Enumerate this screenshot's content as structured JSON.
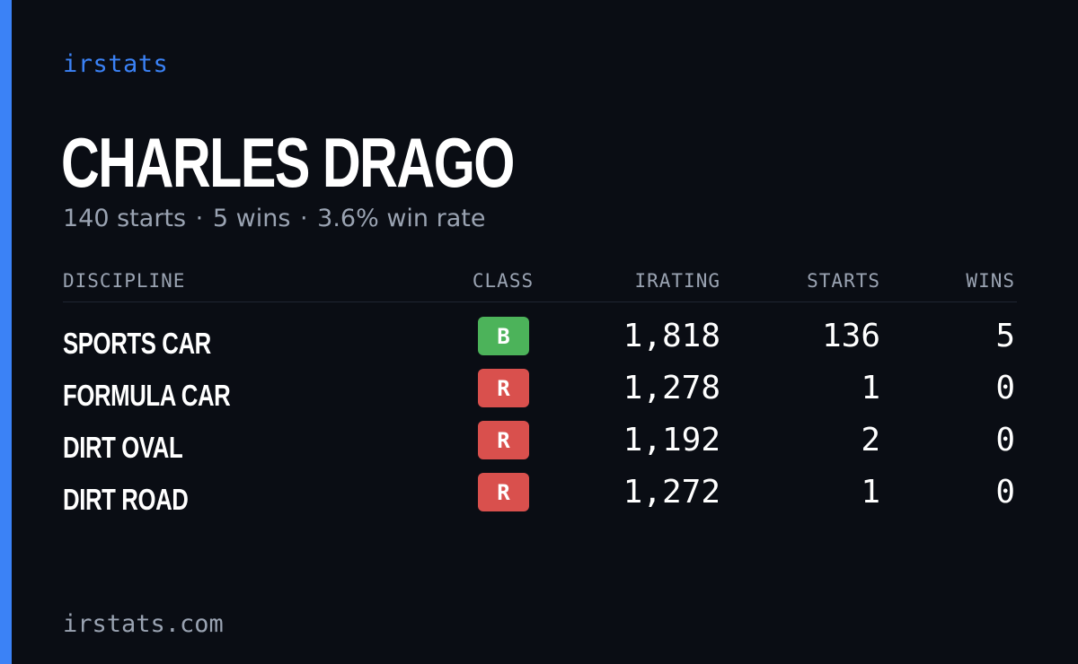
{
  "brand": "irstats",
  "driver": {
    "name": "CHARLES DRAGO"
  },
  "summary": {
    "starts": "140 starts",
    "wins": "5 wins",
    "win_rate": "3.6% win rate",
    "separator": "·"
  },
  "table": {
    "headers": {
      "discipline": "DISCIPLINE",
      "class": "CLASS",
      "irating": "IRATING",
      "starts": "STARTS",
      "wins": "WINS"
    },
    "rows": [
      {
        "discipline": "SPORTS CAR",
        "class": "B",
        "class_color": "#4cb35a",
        "irating": "1,818",
        "starts": "136",
        "wins": "5"
      },
      {
        "discipline": "FORMULA CAR",
        "class": "R",
        "class_color": "#d9504d",
        "irating": "1,278",
        "starts": "1",
        "wins": "0"
      },
      {
        "discipline": "DIRT OVAL",
        "class": "R",
        "class_color": "#d9504d",
        "irating": "1,192",
        "starts": "2",
        "wins": "0"
      },
      {
        "discipline": "DIRT ROAD",
        "class": "R",
        "class_color": "#d9504d",
        "irating": "1,272",
        "starts": "1",
        "wins": "0"
      }
    ]
  },
  "footer": {
    "domain": "irstats.com"
  },
  "colors": {
    "accent": "#3b82f6",
    "background": "#0a0d14",
    "muted": "#9aa3b2"
  }
}
